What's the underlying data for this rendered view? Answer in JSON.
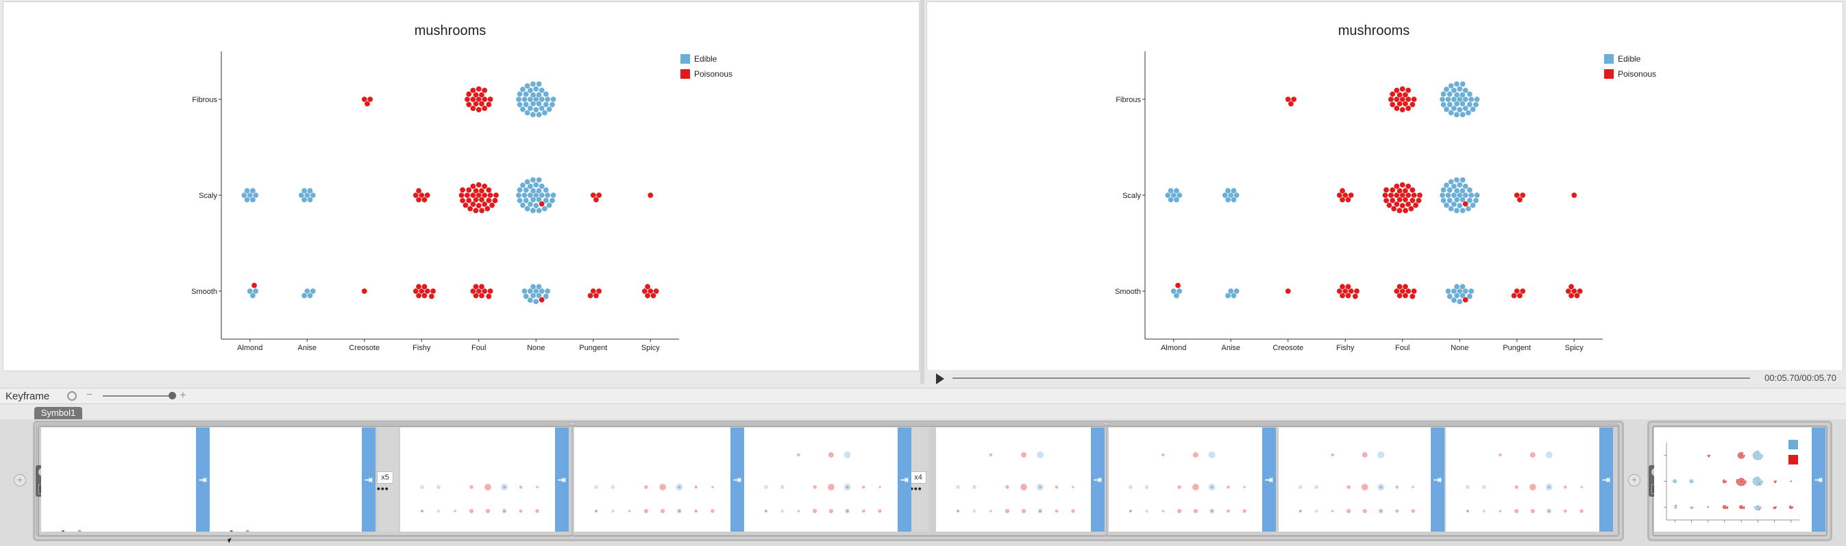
{
  "chart_data": [
    {
      "type": "scatter",
      "title": "mushrooms",
      "categories_x": [
        "Almond",
        "Anise",
        "Creosote",
        "Fishy",
        "Foul",
        "None",
        "Pungent",
        "Spicy"
      ],
      "categories_y": [
        "Fibrous",
        "Scaly",
        "Smooth"
      ],
      "legend": {
        "position": "top-right",
        "entries": [
          "Edible",
          "Poisonous"
        ]
      },
      "series": [
        {
          "name": "Edible",
          "color": "#6baed6",
          "clusters": [
            {
              "x": "None",
              "y": "Fibrous",
              "count": 34
            },
            {
              "x": "Almond",
              "y": "Scaly",
              "count": 7
            },
            {
              "x": "Anise",
              "y": "Scaly",
              "count": 7
            },
            {
              "x": "None",
              "y": "Scaly",
              "count": 34
            },
            {
              "x": "Almond",
              "y": "Smooth",
              "count": 3
            },
            {
              "x": "Anise",
              "y": "Smooth",
              "count": 4
            },
            {
              "x": "None",
              "y": "Smooth",
              "count": 14
            }
          ]
        },
        {
          "name": "Poisonous",
          "color": "#e31a1c",
          "clusters": [
            {
              "x": "Creosote",
              "y": "Fibrous",
              "count": 3
            },
            {
              "x": "Foul",
              "y": "Fibrous",
              "count": 18
            },
            {
              "x": "Fishy",
              "y": "Scaly",
              "count": 6
            },
            {
              "x": "Foul",
              "y": "Scaly",
              "count": 30
            },
            {
              "x": "None",
              "y": "Scaly",
              "count": 1
            },
            {
              "x": "Pungent",
              "y": "Scaly",
              "count": 3
            },
            {
              "x": "Spicy",
              "y": "Scaly",
              "count": 1
            },
            {
              "x": "Almond",
              "y": "Smooth",
              "count": 1
            },
            {
              "x": "Creosote",
              "y": "Smooth",
              "count": 1
            },
            {
              "x": "Fishy",
              "y": "Smooth",
              "count": 9
            },
            {
              "x": "Foul",
              "y": "Smooth",
              "count": 9
            },
            {
              "x": "None",
              "y": "Smooth",
              "count": 1
            },
            {
              "x": "Pungent",
              "y": "Smooth",
              "count": 4
            },
            {
              "x": "Spicy",
              "y": "Smooth",
              "count": 6
            }
          ]
        }
      ]
    }
  ],
  "player": {
    "time": "00:05.70/00:05.70"
  },
  "keyframe_panel": {
    "title": "Keyframe",
    "symbol_tab": "Symbol1"
  },
  "badges": [
    "x5",
    "x4"
  ]
}
